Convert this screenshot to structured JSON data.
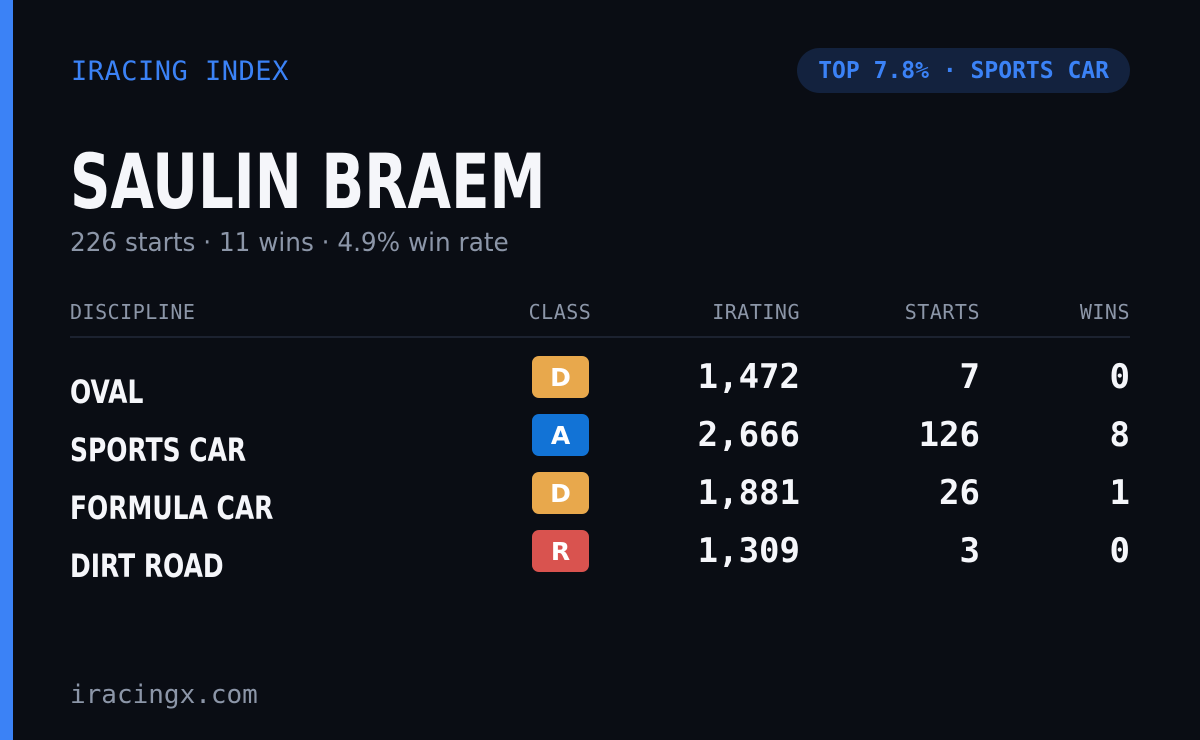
{
  "header": {
    "brand": "IRACING INDEX",
    "rank_badge": "TOP 7.8% · SPORTS CAR"
  },
  "driver": {
    "name": "SAULIN BRAEM",
    "summary": "226 starts · 11 wins · 4.9% win rate"
  },
  "table": {
    "columns": {
      "discipline": "DISCIPLINE",
      "class": "CLASS",
      "irating": "IRATING",
      "starts": "STARTS",
      "wins": "WINS"
    },
    "rows": [
      {
        "discipline": "OVAL",
        "class": "D",
        "class_color": "#e8a84c",
        "irating": "1,472",
        "starts": "7",
        "wins": "0"
      },
      {
        "discipline": "SPORTS CAR",
        "class": "A",
        "class_color": "#1273d6",
        "irating": "2,666",
        "starts": "126",
        "wins": "8"
      },
      {
        "discipline": "FORMULA CAR",
        "class": "D",
        "class_color": "#e8a84c",
        "irating": "1,881",
        "starts": "26",
        "wins": "1"
      },
      {
        "discipline": "DIRT ROAD",
        "class": "R",
        "class_color": "#d9534f",
        "irating": "1,309",
        "starts": "3",
        "wins": "0"
      }
    ]
  },
  "footer": {
    "site": "iracingx.com"
  },
  "colors": {
    "background": "#0a0d14",
    "accent": "#3b82f6",
    "muted_text": "#8c96a8",
    "pill_background": "#13223e"
  }
}
